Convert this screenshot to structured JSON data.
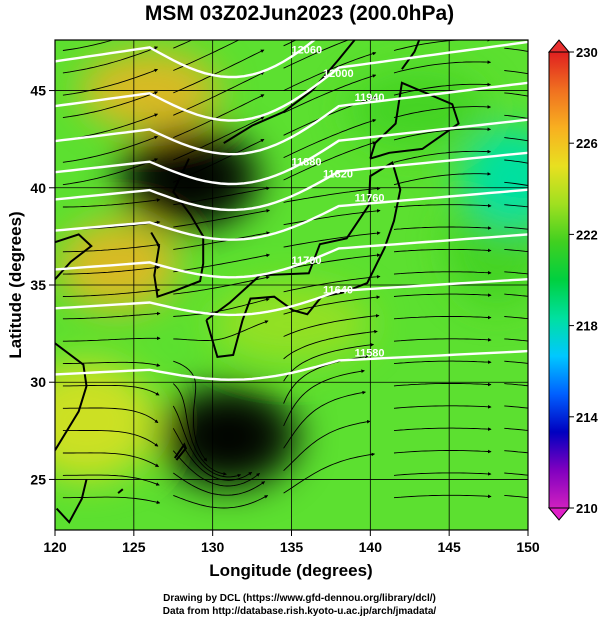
{
  "title": "MSM 03Z02Jun2023 (200.0hPa)",
  "xaxis": {
    "label": "Longitude (degrees)",
    "ticks": [
      "120",
      "125",
      "130",
      "135",
      "140",
      "145",
      "150"
    ],
    "range": [
      120,
      150
    ]
  },
  "yaxis": {
    "label": "Latitude  (degrees)",
    "ticks": [
      "25",
      "30",
      "35",
      "40",
      "45"
    ],
    "range": [
      22.4,
      47.6
    ]
  },
  "colorbar": {
    "ticks": [
      "210",
      "214",
      "218",
      "222",
      "226",
      "230"
    ],
    "range": [
      210,
      230
    ],
    "colors": [
      "#d020c0",
      "#8000c0",
      "#0000c0",
      "#0060ff",
      "#00c8ff",
      "#00e0a0",
      "#00d040",
      "#40d020",
      "#a0e020",
      "#e8e020",
      "#f8b020",
      "#f07020",
      "#e02020"
    ]
  },
  "contours": [
    {
      "label": "12060",
      "lat_at_120": 46.5
    },
    {
      "label": "12000",
      "lat_at_120": 44.2
    },
    {
      "label": "11940",
      "lat_at_120": 42.4
    },
    {
      "label": "11880",
      "lat_at_120": 40.8
    },
    {
      "label": "11820",
      "lat_at_120": 39.4
    },
    {
      "label": "11760",
      "lat_at_120": 37.8
    },
    {
      "label": "11700",
      "lat_at_120": 35.8
    },
    {
      "label": "11640",
      "lat_at_120": 33.8
    },
    {
      "label": "11580",
      "lat_at_120": 30.4
    }
  ],
  "warm_centers": [
    {
      "name": "north-warm",
      "lon": 128.5,
      "lat": 40.5,
      "value": 228
    },
    {
      "name": "south-warm",
      "lon": 131,
      "lat": 27.2,
      "value": 228
    }
  ],
  "cool_centers": [
    {
      "name": "east-cool",
      "lon": 149,
      "lat": 40.5,
      "value": 219
    }
  ],
  "footer": {
    "line1": "Drawing by DCL (https://www.gfd-dennou.org/library/dcl/)",
    "line2": "Data from http://database.rish.kyoto-u.ac.jp/arch/jmadata/"
  }
}
